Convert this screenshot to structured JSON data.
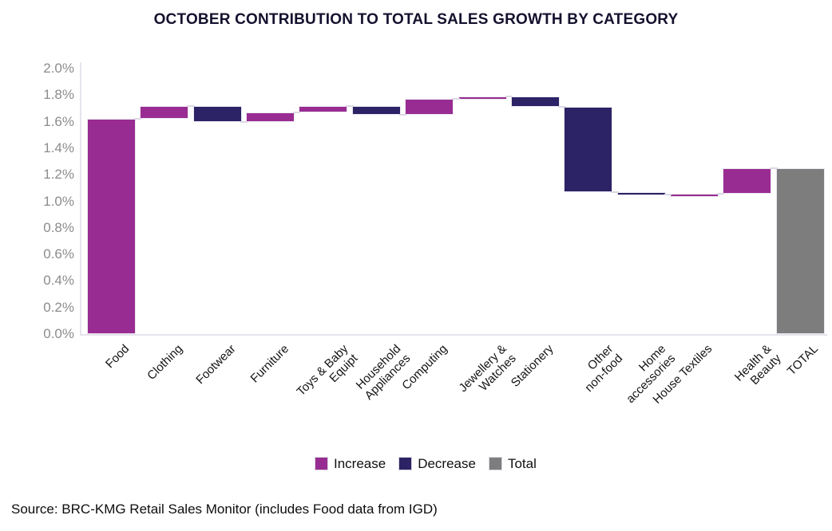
{
  "title": "OCTOBER CONTRIBUTION TO TOTAL SALES GROWTH BY CATEGORY",
  "source_note": "Source: BRC-KMG Retail Sales Monitor (includes Food data from IGD)",
  "legend": [
    {
      "label": "Increase",
      "kind": "increase"
    },
    {
      "label": "Decrease",
      "kind": "decrease"
    },
    {
      "label": "Total",
      "kind": "total"
    }
  ],
  "colors": {
    "increase": "#992c92",
    "decrease": "#2b2365",
    "total": "#7d7d7d",
    "bar_border": "#eceaf2",
    "connector": "#ddd9e4",
    "axis_line": "#e6e3ec",
    "y_tick_text": "#8c8c8c",
    "x_label_text": "#141414"
  },
  "chart_data": {
    "type": "bar",
    "subtype": "waterfall",
    "title": "OCTOBER CONTRIBUTION TO TOTAL SALES GROWTH BY CATEGORY",
    "xlabel": "",
    "ylabel": "",
    "unit": "percentage points",
    "ylim": [
      0,
      2.0
    ],
    "y_ticks": [
      "0.0%",
      "0.2%",
      "0.4%",
      "0.6%",
      "0.8%",
      "1.0%",
      "1.2%",
      "1.4%",
      "1.6%",
      "1.8%",
      "2.0%"
    ],
    "grid": false,
    "legend_position": "bottom",
    "categories": [
      "Food",
      "Clothing",
      "Footwear",
      "Furniture",
      "Toys & Baby Equipt",
      "Household Appliances",
      "Computing",
      "Jewellery & Watches",
      "Stationery",
      "Other non-food",
      "Home accessories",
      "House Textiles",
      "Health & Beauty",
      "TOTAL"
    ],
    "bars": [
      {
        "category": "Food",
        "label_lines": [
          "Food"
        ],
        "kind": "increase",
        "delta": 1.62,
        "start": 0.0,
        "end": 1.62
      },
      {
        "category": "Clothing",
        "label_lines": [
          "Clothing"
        ],
        "kind": "increase",
        "delta": 0.1,
        "start": 1.62,
        "end": 1.72
      },
      {
        "category": "Footwear",
        "label_lines": [
          "Footwear"
        ],
        "kind": "decrease",
        "delta": -0.12,
        "start": 1.72,
        "end": 1.6
      },
      {
        "category": "Furniture",
        "label_lines": [
          "Furniture"
        ],
        "kind": "increase",
        "delta": 0.07,
        "start": 1.6,
        "end": 1.67
      },
      {
        "category": "Toys & Baby Equipt",
        "label_lines": [
          "Toys & Baby",
          "Equipt"
        ],
        "kind": "increase",
        "delta": 0.05,
        "start": 1.67,
        "end": 1.72
      },
      {
        "category": "Household Appliances",
        "label_lines": [
          "Household",
          "Appliances"
        ],
        "kind": "decrease",
        "delta": -0.07,
        "start": 1.72,
        "end": 1.65
      },
      {
        "category": "Computing",
        "label_lines": [
          "Computing"
        ],
        "kind": "increase",
        "delta": 0.12,
        "start": 1.65,
        "end": 1.77
      },
      {
        "category": "Jewellery & Watches",
        "label_lines": [
          "Jewellery &",
          "Watches"
        ],
        "kind": "increase",
        "delta": 0.02,
        "start": 1.77,
        "end": 1.79
      },
      {
        "category": "Stationery",
        "label_lines": [
          "Stationery"
        ],
        "kind": "decrease",
        "delta": -0.08,
        "start": 1.79,
        "end": 1.71
      },
      {
        "category": "Other non-food",
        "label_lines": [
          "Other",
          "non-food"
        ],
        "kind": "decrease",
        "delta": -0.64,
        "start": 1.71,
        "end": 1.07
      },
      {
        "category": "Home accessories",
        "label_lines": [
          "Home",
          "accessories"
        ],
        "kind": "decrease",
        "delta": -0.02,
        "start": 1.07,
        "end": 1.05
      },
      {
        "category": "House Textiles",
        "label_lines": [
          "House Textiles"
        ],
        "kind": "increase",
        "delta": 0.01,
        "start": 1.05,
        "end": 1.06
      },
      {
        "category": "Health & Beauty",
        "label_lines": [
          "Health &",
          "Beauty"
        ],
        "kind": "increase",
        "delta": 0.19,
        "start": 1.06,
        "end": 1.25
      },
      {
        "category": "TOTAL",
        "label_lines": [
          "TOTAL"
        ],
        "kind": "total",
        "delta": 1.25,
        "start": 0.0,
        "end": 1.25
      }
    ]
  }
}
